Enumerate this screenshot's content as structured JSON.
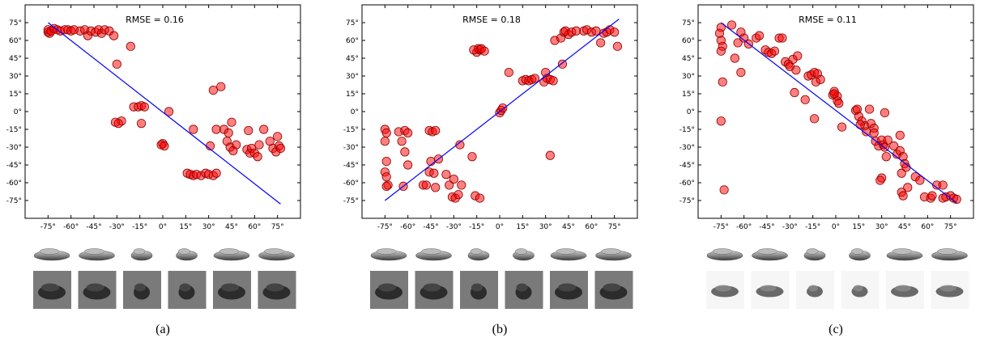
{
  "chart_data": [
    {
      "type": "scatter",
      "annotation": "RMSE =  0.16",
      "caption": "(a)",
      "xlim": [
        -90,
        90
      ],
      "ylim": [
        -90,
        90
      ],
      "xticks": [
        "-75°",
        "-60°",
        "-45°",
        "-30°",
        "-15°",
        "0°",
        "15°",
        "30°",
        "45°",
        "60°",
        "75°"
      ],
      "yticks": [
        "75°",
        "60°",
        "45°",
        "30°",
        "15°",
        "0°",
        "-15°",
        "-30°",
        "-45°",
        "-60°",
        "-75°"
      ],
      "grid": false,
      "line": {
        "x": [
          -75,
          77
        ],
        "y": [
          75,
          -78
        ],
        "color": "#0000ff"
      },
      "point_color": "#ff0000",
      "points": [
        [
          -75,
          67
        ],
        [
          -75,
          69
        ],
        [
          -74,
          66
        ],
        [
          -73,
          68
        ],
        [
          -71,
          70
        ],
        [
          -69,
          69
        ],
        [
          -67,
          68
        ],
        [
          -64,
          69
        ],
        [
          -62,
          69
        ],
        [
          -60,
          68
        ],
        [
          -58,
          69
        ],
        [
          -54,
          68
        ],
        [
          -51,
          69
        ],
        [
          -49,
          64
        ],
        [
          -47,
          68
        ],
        [
          -44,
          67
        ],
        [
          -42,
          69
        ],
        [
          -40,
          66
        ],
        [
          -38,
          69
        ],
        [
          -35,
          68
        ],
        [
          -32,
          64
        ],
        [
          -30,
          40
        ],
        [
          -21,
          55
        ],
        [
          -19,
          4
        ],
        [
          -16,
          4
        ],
        [
          -14,
          5
        ],
        [
          -12,
          4
        ],
        [
          -14,
          -10
        ],
        [
          -27,
          -8
        ],
        [
          -31,
          -9
        ],
        [
          -29,
          -10
        ],
        [
          4,
          0
        ],
        [
          0,
          -27
        ],
        [
          -1,
          -28
        ],
        [
          1,
          -29
        ],
        [
          20,
          -15
        ],
        [
          16,
          -52
        ],
        [
          18,
          -53
        ],
        [
          20,
          -54
        ],
        [
          22,
          -53
        ],
        [
          25,
          -54
        ],
        [
          28,
          -52
        ],
        [
          30,
          -53
        ],
        [
          33,
          -54
        ],
        [
          35,
          -52
        ],
        [
          31,
          -29
        ],
        [
          33,
          18
        ],
        [
          38,
          21
        ],
        [
          35,
          -15
        ],
        [
          40,
          -15
        ],
        [
          43,
          -18
        ],
        [
          42,
          -25
        ],
        [
          44,
          -30
        ],
        [
          46,
          -33
        ],
        [
          48,
          -28
        ],
        [
          45,
          -9
        ],
        [
          55,
          -32
        ],
        [
          57,
          -35
        ],
        [
          58,
          -31
        ],
        [
          60,
          -35
        ],
        [
          62,
          -38
        ],
        [
          63,
          -28
        ],
        [
          56,
          -16
        ],
        [
          66,
          -15
        ],
        [
          70,
          -25
        ],
        [
          72,
          -31
        ],
        [
          74,
          -34
        ],
        [
          75,
          -21
        ],
        [
          76,
          -29
        ],
        [
          77,
          -31
        ]
      ]
    },
    {
      "type": "scatter",
      "annotation": "RMSE =  0.18",
      "caption": "(b)",
      "xlim": [
        -90,
        90
      ],
      "ylim": [
        -90,
        90
      ],
      "xticks": [
        "-75°",
        "-60°",
        "-45°",
        "-30°",
        "-15°",
        "0°",
        "15°",
        "30°",
        "45°",
        "60°",
        "75°"
      ],
      "yticks": [
        "75°",
        "60°",
        "45°",
        "30°",
        "15°",
        "0°",
        "-15°",
        "-30°",
        "-45°",
        "-60°",
        "-75°"
      ],
      "grid": false,
      "line": {
        "x": [
          -75,
          78
        ],
        "y": [
          -75,
          78
        ],
        "color": "#0000ff"
      },
      "point_color": "#ff0000",
      "points": [
        [
          -75,
          -15
        ],
        [
          -74,
          -18
        ],
        [
          -75,
          -25
        ],
        [
          -74,
          -42
        ],
        [
          -75,
          -51
        ],
        [
          -74,
          -55
        ],
        [
          -73,
          -62
        ],
        [
          -74,
          -63
        ],
        [
          -66,
          -17
        ],
        [
          -64,
          -25
        ],
        [
          -62,
          -16
        ],
        [
          -60,
          -18
        ],
        [
          -62,
          -34
        ],
        [
          -60,
          -45
        ],
        [
          -63,
          -63
        ],
        [
          -50,
          -62
        ],
        [
          -48,
          -62
        ],
        [
          -46,
          -16
        ],
        [
          -44,
          -17
        ],
        [
          -42,
          -16
        ],
        [
          -45,
          -42
        ],
        [
          -46,
          -51
        ],
        [
          -43,
          -52
        ],
        [
          -42,
          -64
        ],
        [
          -40,
          -40
        ],
        [
          -35,
          -53
        ],
        [
          -33,
          -62
        ],
        [
          -31,
          -72
        ],
        [
          -29,
          -73
        ],
        [
          -27,
          -70
        ],
        [
          -25,
          -62
        ],
        [
          -30,
          -57
        ],
        [
          -26,
          -28
        ],
        [
          -18,
          -38
        ],
        [
          -16,
          -71
        ],
        [
          -13,
          -73
        ],
        [
          -15,
          50
        ],
        [
          -14,
          53
        ],
        [
          -13,
          52
        ],
        [
          -12,
          53
        ],
        [
          -10,
          51
        ],
        [
          -17,
          52
        ],
        [
          0,
          -1
        ],
        [
          1,
          1
        ],
        [
          2,
          3
        ],
        [
          6,
          33
        ],
        [
          15,
          26
        ],
        [
          17,
          27
        ],
        [
          19,
          26
        ],
        [
          21,
          27
        ],
        [
          23,
          28
        ],
        [
          29,
          25
        ],
        [
          31,
          28
        ],
        [
          33,
          27
        ],
        [
          30,
          33
        ],
        [
          35,
          26
        ],
        [
          33,
          -37
        ],
        [
          36,
          60
        ],
        [
          40,
          62
        ],
        [
          41,
          40
        ],
        [
          42,
          67
        ],
        [
          43,
          68
        ],
        [
          45,
          65
        ],
        [
          47,
          67
        ],
        [
          50,
          68
        ],
        [
          55,
          68
        ],
        [
          57,
          69
        ],
        [
          60,
          67
        ],
        [
          63,
          68
        ],
        [
          66,
          58
        ],
        [
          68,
          66
        ],
        [
          70,
          67
        ],
        [
          72,
          69
        ],
        [
          75,
          67
        ],
        [
          77,
          55
        ]
      ]
    },
    {
      "type": "scatter",
      "annotation": "RMSE =  0.11",
      "caption": "(c)",
      "xlim": [
        -90,
        90
      ],
      "ylim": [
        -90,
        90
      ],
      "xticks": [
        "-75°",
        "-60°",
        "-45°",
        "-30°",
        "-15°",
        "0°",
        "15°",
        "30°",
        "45°",
        "60°",
        "75°"
      ],
      "yticks": [
        "75°",
        "60°",
        "45°",
        "30°",
        "15°",
        "0°",
        "-15°",
        "-30°",
        "-45°",
        "-60°",
        "-75°"
      ],
      "grid": false,
      "line": {
        "x": [
          -75,
          79
        ],
        "y": [
          75,
          -77
        ],
        "color": "#0000ff"
      },
      "point_color": "#ff0000",
      "points": [
        [
          -75,
          71
        ],
        [
          -76,
          66
        ],
        [
          -75,
          60
        ],
        [
          -74,
          55
        ],
        [
          -75,
          51
        ],
        [
          -74,
          25
        ],
        [
          -75,
          -8
        ],
        [
          -73,
          -66
        ],
        [
          -68,
          73
        ],
        [
          -66,
          45
        ],
        [
          -64,
          58
        ],
        [
          -62,
          67
        ],
        [
          -62,
          33
        ],
        [
          -60,
          62
        ],
        [
          -57,
          57
        ],
        [
          -52,
          62
        ],
        [
          -50,
          64
        ],
        [
          -46,
          52
        ],
        [
          -44,
          50
        ],
        [
          -42,
          49
        ],
        [
          -40,
          51
        ],
        [
          -37,
          62
        ],
        [
          -35,
          62
        ],
        [
          -33,
          42
        ],
        [
          -31,
          40
        ],
        [
          -30,
          38
        ],
        [
          -28,
          44
        ],
        [
          -26,
          35
        ],
        [
          -25,
          47
        ],
        [
          -27,
          16
        ],
        [
          -20,
          10
        ],
        [
          -18,
          30
        ],
        [
          -16,
          31
        ],
        [
          -14,
          33
        ],
        [
          -12,
          32
        ],
        [
          -13,
          25
        ],
        [
          -10,
          27
        ],
        [
          -14,
          -6
        ],
        [
          -2,
          14
        ],
        [
          -1,
          17
        ],
        [
          1,
          13
        ],
        [
          1,
          9
        ],
        [
          2,
          7
        ],
        [
          4,
          -13
        ],
        [
          -1,
          15
        ],
        [
          13,
          1
        ],
        [
          14,
          2
        ],
        [
          15,
          -4
        ],
        [
          17,
          -8
        ],
        [
          19,
          -12
        ],
        [
          20,
          -17
        ],
        [
          16,
          -11
        ],
        [
          22,
          2
        ],
        [
          23,
          -10
        ],
        [
          25,
          -14
        ],
        [
          25,
          -18
        ],
        [
          26,
          -25
        ],
        [
          28,
          -29
        ],
        [
          30,
          -24
        ],
        [
          31,
          -28
        ],
        [
          32,
          -30
        ],
        [
          33,
          -38
        ],
        [
          34,
          -24
        ],
        [
          30,
          -56
        ],
        [
          29,
          -58
        ],
        [
          32,
          -1
        ],
        [
          38,
          -29
        ],
        [
          40,
          -36
        ],
        [
          42,
          -33
        ],
        [
          44,
          -38
        ],
        [
          45,
          -44
        ],
        [
          46,
          -47
        ],
        [
          42,
          -20
        ],
        [
          43,
          -52
        ],
        [
          47,
          -64
        ],
        [
          43,
          -68
        ],
        [
          44,
          -71
        ],
        [
          52,
          -55
        ],
        [
          55,
          -58
        ],
        [
          58,
          -72
        ],
        [
          62,
          -73
        ],
        [
          63,
          -71
        ],
        [
          66,
          -62
        ],
        [
          70,
          -62
        ],
        [
          70,
          -73
        ],
        [
          72,
          -72
        ],
        [
          75,
          -71
        ],
        [
          77,
          -73
        ],
        [
          79,
          -74
        ]
      ]
    }
  ]
}
